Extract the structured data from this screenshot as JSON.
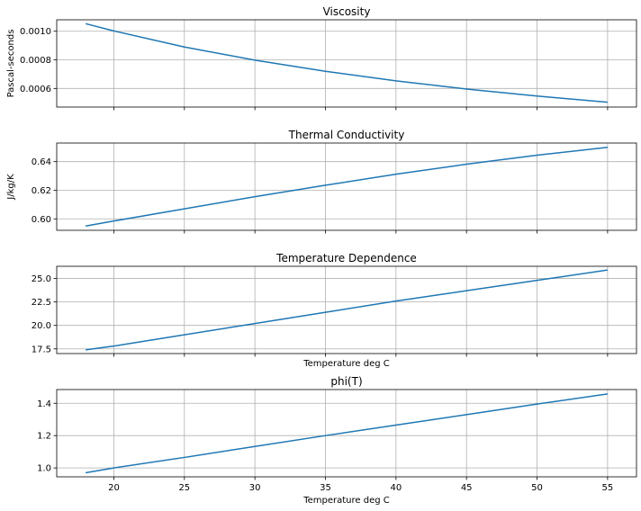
{
  "chart_data": [
    {
      "type": "line",
      "title": "Viscosity",
      "xlabel": "",
      "ylabel": "Pascal-seconds",
      "xlim": [
        15.95,
        57.05
      ],
      "ylim": [
        0.00047,
        0.00108
      ],
      "xticks": [
        20,
        25,
        30,
        35,
        40,
        45,
        50,
        55
      ],
      "show_xtick_labels": false,
      "yticks": [
        0.0006,
        0.0008,
        0.001
      ],
      "ytick_labels": [
        "0.0006",
        "0.0008",
        "0.0010"
      ],
      "grid": true,
      "series": [
        {
          "color": "#1f77b4",
          "x": [
            18,
            20,
            25,
            30,
            35,
            40,
            45,
            50,
            55
          ],
          "y": [
            0.001053,
            0.001002,
            0.00089,
            0.000798,
            0.00072,
            0.000653,
            0.000596,
            0.000547,
            0.000504
          ]
        }
      ]
    },
    {
      "type": "line",
      "title": "Thermal Conductivity",
      "xlabel": "",
      "ylabel": "J/kg/K",
      "xlim": [
        15.95,
        57.05
      ],
      "ylim": [
        0.592,
        0.653
      ],
      "xticks": [
        20,
        25,
        30,
        35,
        40,
        45,
        50,
        55
      ],
      "show_xtick_labels": false,
      "yticks": [
        0.6,
        0.62,
        0.64
      ],
      "ytick_labels": [
        "0.60",
        "0.62",
        "0.64"
      ],
      "grid": true,
      "series": [
        {
          "color": "#1f77b4",
          "x": [
            18,
            20,
            25,
            30,
            35,
            40,
            45,
            50,
            55
          ],
          "y": [
            0.595,
            0.5985,
            0.607,
            0.6155,
            0.6235,
            0.6312,
            0.6382,
            0.6445,
            0.65
          ]
        }
      ]
    },
    {
      "type": "line",
      "title": "Temperature Dependence",
      "xlabel": "Temperature deg C",
      "ylabel": "",
      "xlim": [
        15.95,
        57.05
      ],
      "ylim": [
        17.0,
        26.3
      ],
      "xticks": [
        20,
        25,
        30,
        35,
        40,
        45,
        50,
        55
      ],
      "show_xtick_labels": false,
      "yticks": [
        17.5,
        20.0,
        22.5,
        25.0
      ],
      "ytick_labels": [
        "17.5",
        "20.0",
        "22.5",
        "25.0"
      ],
      "grid": true,
      "series": [
        {
          "color": "#1f77b4",
          "x": [
            18,
            20,
            25,
            30,
            35,
            40,
            45,
            50,
            55
          ],
          "y": [
            17.4,
            17.8,
            19.0,
            20.2,
            21.4,
            22.6,
            23.7,
            24.8,
            25.9
          ]
        }
      ]
    },
    {
      "type": "line",
      "title": "phi(T)",
      "xlabel": "Temperature deg C",
      "ylabel": "",
      "xlim": [
        15.95,
        57.05
      ],
      "ylim": [
        0.945,
        1.485
      ],
      "xticks": [
        20,
        25,
        30,
        35,
        40,
        45,
        50,
        55
      ],
      "show_xtick_labels": true,
      "yticks": [
        1.0,
        1.2,
        1.4
      ],
      "ytick_labels": [
        "1.0",
        "1.2",
        "1.4"
      ],
      "grid": true,
      "series": [
        {
          "color": "#1f77b4",
          "x": [
            18,
            20,
            25,
            30,
            35,
            40,
            45,
            50,
            55
          ],
          "y": [
            0.97,
            1.0,
            1.065,
            1.133,
            1.2,
            1.265,
            1.33,
            1.395,
            1.458
          ]
        }
      ]
    }
  ]
}
